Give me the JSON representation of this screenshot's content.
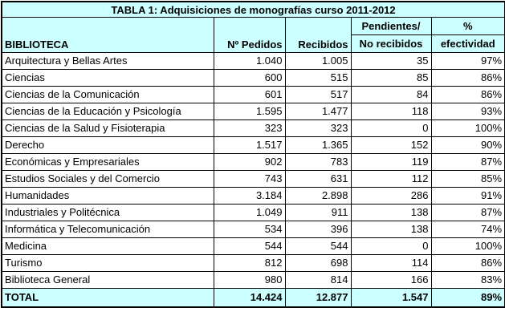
{
  "title": "TABLA 1: Adquisiciones de monografías curso 2011-2012",
  "headers": {
    "biblioteca": "BIBLIOTECA",
    "pedidos": "Nº Pedidos",
    "recibidos": "Recibidos",
    "pendientes_top": "Pendientes/",
    "pendientes_bottom": "No recibidos",
    "efectividad_top": "%",
    "efectividad_bottom": "efectividad"
  },
  "rows": [
    {
      "name": "Arquitectura y Bellas Artes",
      "pedidos": "1.040",
      "recibidos": "1.005",
      "pendientes": "35",
      "efectividad": "97%"
    },
    {
      "name": "Ciencias",
      "pedidos": "600",
      "recibidos": "515",
      "pendientes": "85",
      "efectividad": "86%"
    },
    {
      "name": "Ciencias de la Comunicación",
      "pedidos": "601",
      "recibidos": "517",
      "pendientes": "84",
      "efectividad": "86%"
    },
    {
      "name": "Ciencias de la Educación y Psicología",
      "pedidos": "1.595",
      "recibidos": "1.477",
      "pendientes": "118",
      "efectividad": "93%"
    },
    {
      "name": "Ciencias de la Salud y Fisioterapia",
      "pedidos": "323",
      "recibidos": "323",
      "pendientes": "0",
      "efectividad": "100%"
    },
    {
      "name": "Derecho",
      "pedidos": "1.517",
      "recibidos": "1.365",
      "pendientes": "152",
      "efectividad": "90%"
    },
    {
      "name": "Económicas y Empresariales",
      "pedidos": "902",
      "recibidos": "783",
      "pendientes": "119",
      "efectividad": "87%"
    },
    {
      "name": "Estudios Sociales y del Comercio",
      "pedidos": "743",
      "recibidos": "631",
      "pendientes": "112",
      "efectividad": "85%"
    },
    {
      "name": "Humanidades",
      "pedidos": "3.184",
      "recibidos": "2.898",
      "pendientes": "286",
      "efectividad": "91%"
    },
    {
      "name": "Industriales y Politécnica",
      "pedidos": "1.049",
      "recibidos": "911",
      "pendientes": "138",
      "efectividad": "87%"
    },
    {
      "name": "Informática y Telecomunicación",
      "pedidos": "534",
      "recibidos": "396",
      "pendientes": "138",
      "efectividad": "74%"
    },
    {
      "name": "Medicina",
      "pedidos": "544",
      "recibidos": "544",
      "pendientes": "0",
      "efectividad": "100%"
    },
    {
      "name": "Turismo",
      "pedidos": "812",
      "recibidos": "698",
      "pendientes": "114",
      "efectividad": "86%"
    },
    {
      "name": "Biblioteca General",
      "pedidos": "980",
      "recibidos": "814",
      "pendientes": "166",
      "efectividad": "83%"
    }
  ],
  "total": {
    "label": "TOTAL",
    "pedidos": "14.424",
    "recibidos": "12.877",
    "pendientes": "1.547",
    "efectividad": "89%"
  },
  "colors": {
    "cyan": "#ccffff",
    "white": "#ffffff",
    "border": "#000000"
  }
}
